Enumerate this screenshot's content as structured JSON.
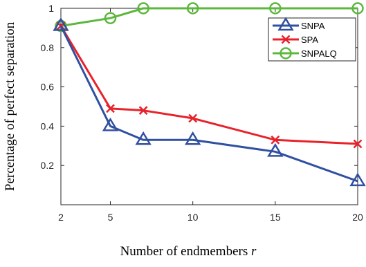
{
  "chart_data": {
    "type": "line",
    "xlabel": "Number of endmembers ",
    "xlabel_var": "r",
    "ylabel": "Percentage of perfect separation",
    "xlim": [
      2,
      20
    ],
    "ylim": [
      0,
      1
    ],
    "xticks": [
      2,
      5,
      10,
      15,
      20
    ],
    "yticks": [
      0.2,
      0.4,
      0.6,
      0.8,
      1
    ],
    "ytick_labels": [
      "0.2",
      "0.4",
      "0.6",
      "0.8",
      "1"
    ],
    "grid": false,
    "legend_position": "top-right",
    "series": [
      {
        "name": "SNPA",
        "color": "#3050a0",
        "marker": "triangle",
        "x": [
          2,
          5,
          7,
          10,
          15,
          20
        ],
        "y": [
          0.91,
          0.4,
          0.33,
          0.33,
          0.27,
          0.12
        ]
      },
      {
        "name": "SPA",
        "color": "#e8222a",
        "marker": "x",
        "x": [
          2,
          5,
          7,
          10,
          15,
          20
        ],
        "y": [
          0.91,
          0.49,
          0.48,
          0.44,
          0.33,
          0.31
        ]
      },
      {
        "name": "SNPALQ",
        "color": "#5cb83c",
        "marker": "circle",
        "x": [
          2,
          5,
          7,
          10,
          15,
          20
        ],
        "y": [
          0.91,
          0.95,
          1.0,
          1.0,
          1.0,
          1.0
        ]
      }
    ]
  }
}
